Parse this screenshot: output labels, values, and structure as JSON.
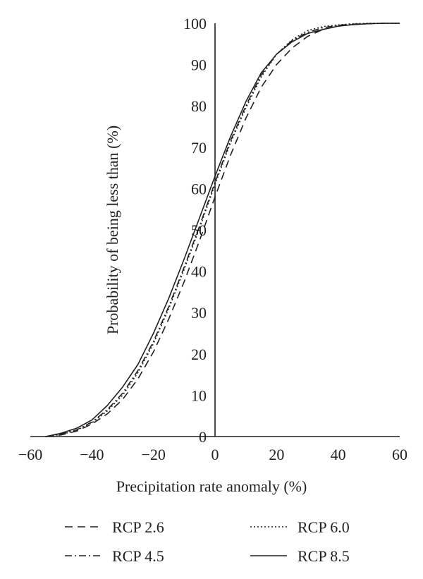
{
  "chart_data": {
    "type": "line",
    "title": "",
    "xlabel": "Precipitation rate anomaly (%)",
    "ylabel": "Probability of being less than (%)",
    "xlim": [
      -60,
      60
    ],
    "ylim": [
      0,
      100
    ],
    "xticks": [
      -60,
      -40,
      -20,
      0,
      20,
      40,
      60
    ],
    "yticks": [
      0,
      10,
      20,
      30,
      40,
      50,
      60,
      70,
      80,
      90,
      100
    ],
    "xtick_labels": [
      "−60",
      "−40",
      "−20",
      "0",
      "20",
      "40",
      "60"
    ],
    "ytick_labels": [
      "0",
      "10",
      "20",
      "30",
      "40",
      "50",
      "60",
      "70",
      "80",
      "90",
      "100"
    ],
    "grid": false,
    "legend_placement": "bottom",
    "line_color": "#231f20",
    "series": [
      {
        "name": "RCP 2.6",
        "dash": "dashed",
        "x": [
          -55,
          -50,
          -45,
          -40,
          -35,
          -30,
          -25,
          -20,
          -15,
          -10,
          -5,
          0,
          5,
          10,
          15,
          20,
          25,
          30,
          35,
          40,
          45,
          50,
          55,
          60
        ],
        "y": [
          0,
          0.4,
          1.3,
          3.0,
          5.5,
          9.0,
          14.0,
          20.5,
          28.5,
          37.5,
          47.5,
          58.0,
          68.0,
          77.0,
          84.5,
          90.0,
          94.0,
          96.8,
          98.5,
          99.3,
          99.7,
          99.9,
          100,
          100
        ]
      },
      {
        "name": "RCP 4.5",
        "dash": "dashdot",
        "x": [
          -55,
          -50,
          -45,
          -40,
          -35,
          -30,
          -25,
          -20,
          -15,
          -10,
          -5,
          0,
          5,
          10,
          15,
          20,
          25,
          30,
          35,
          40,
          45,
          50,
          55,
          60
        ],
        "y": [
          0,
          0.6,
          1.6,
          3.5,
          6.5,
          10.5,
          16.0,
          23.0,
          31.5,
          41.0,
          51.0,
          61.5,
          71.5,
          80.0,
          87.5,
          92.5,
          95.8,
          97.8,
          98.9,
          99.5,
          99.8,
          99.9,
          100,
          100
        ]
      },
      {
        "name": "RCP 6.0",
        "dash": "dotted",
        "x": [
          -55,
          -50,
          -45,
          -40,
          -35,
          -30,
          -25,
          -20,
          -15,
          -10,
          -5,
          0,
          5,
          10,
          15,
          20,
          25,
          30,
          35,
          40,
          45,
          50,
          55,
          60
        ],
        "y": [
          0,
          0.5,
          1.5,
          3.3,
          6.2,
          10.0,
          15.5,
          22.5,
          31.0,
          40.5,
          50.5,
          61.0,
          71.0,
          79.5,
          87.0,
          92.5,
          96.0,
          98.2,
          99.2,
          99.6,
          99.9,
          100,
          100,
          100
        ]
      },
      {
        "name": "RCP 8.5",
        "dash": "solid",
        "x": [
          -55,
          -50,
          -45,
          -40,
          -35,
          -30,
          -25,
          -20,
          -15,
          -10,
          -5,
          0,
          5,
          10,
          15,
          20,
          25,
          30,
          35,
          40,
          45,
          50,
          55,
          60
        ],
        "y": [
          0,
          0.8,
          2.0,
          4.0,
          7.5,
          12.0,
          17.5,
          25.0,
          33.5,
          43.0,
          53.0,
          63.0,
          72.5,
          81.0,
          88.0,
          92.5,
          95.5,
          97.5,
          98.5,
          99.3,
          99.7,
          99.9,
          100,
          100
        ]
      }
    ]
  }
}
